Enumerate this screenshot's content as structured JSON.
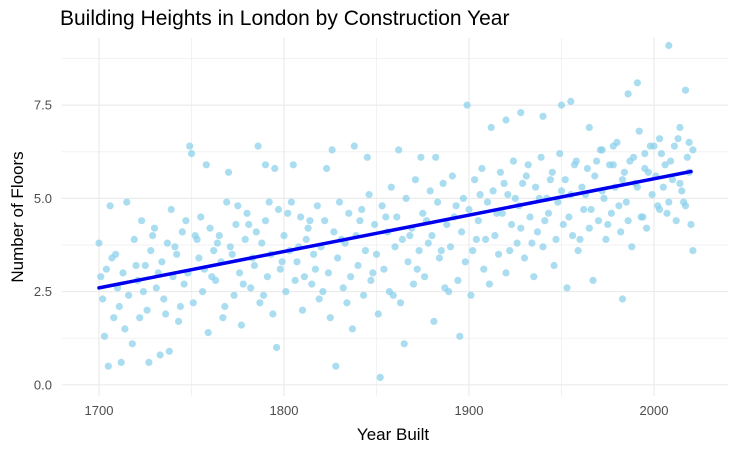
{
  "chart_data": {
    "type": "scatter",
    "title": "Building Heights in London by Construction Year",
    "xlabel": "Year Built",
    "ylabel": "Number of Floors",
    "xlim": [
      1680,
      2040
    ],
    "ylim": [
      -0.3,
      9.3
    ],
    "xticks": [
      1700,
      1800,
      1900,
      2000
    ],
    "xtick_labels": [
      "1700",
      "1800",
      "1900",
      "2000"
    ],
    "yticks": [
      0,
      2.5,
      5,
      7.5
    ],
    "ytick_labels": [
      "0.0",
      "2.5",
      "5.0",
      "7.5"
    ],
    "grid": true,
    "legend": "none",
    "point_color": "#87CEEB",
    "trend_color": "#0000EE",
    "trend_line": {
      "x": [
        1700,
        2020
      ],
      "y": [
        2.6,
        5.72
      ]
    },
    "points": [
      [
        1703,
        1.3
      ],
      [
        1705,
        0.5
      ],
      [
        1708,
        1.8
      ],
      [
        1710,
        2.6
      ],
      [
        1712,
        0.6
      ],
      [
        1718,
        1.1
      ],
      [
        1722,
        1.8
      ],
      [
        1727,
        0.6
      ],
      [
        1733,
        0.8
      ],
      [
        1738,
        0.9
      ],
      [
        1749,
        6.4
      ],
      [
        1750,
        6.2
      ],
      [
        1752,
        4.0
      ],
      [
        1758,
        5.9
      ],
      [
        1770,
        5.7
      ],
      [
        1786,
        6.4
      ],
      [
        1790,
        5.9
      ],
      [
        1796,
        1.0
      ],
      [
        1795,
        5.8
      ],
      [
        1805,
        5.9
      ],
      [
        1823,
        5.8
      ],
      [
        1826,
        6.3
      ],
      [
        1828,
        0.5
      ],
      [
        1838,
        6.4
      ],
      [
        1845,
        6.1
      ],
      [
        1852,
        0.2
      ],
      [
        1862,
        6.3
      ],
      [
        1865,
        1.1
      ],
      [
        1874,
        6.1
      ],
      [
        1882,
        6.1
      ],
      [
        1895,
        1.3
      ],
      [
        1899,
        7.5
      ],
      [
        1912,
        6.9
      ],
      [
        1920,
        7.1
      ],
      [
        1928,
        7.3
      ],
      [
        1940,
        7.2
      ],
      [
        1950,
        7.5
      ],
      [
        1955,
        7.6
      ],
      [
        1965,
        6.9
      ],
      [
        1972,
        6.3
      ],
      [
        1978,
        6.4
      ],
      [
        1983,
        2.3
      ],
      [
        1986,
        7.8
      ],
      [
        1991,
        8.1
      ],
      [
        1995,
        6.2
      ],
      [
        2003,
        6.6
      ],
      [
        2008,
        9.1
      ],
      [
        2014,
        6.9
      ],
      [
        2017,
        7.9
      ],
      [
        2021,
        3.6
      ],
      [
        1700,
        3.8
      ],
      [
        1702,
        2.3
      ],
      [
        1704,
        3.1
      ],
      [
        1706,
        4.8
      ],
      [
        1709,
        3.5
      ],
      [
        1711,
        2.1
      ],
      [
        1713,
        3.0
      ],
      [
        1715,
        4.9
      ],
      [
        1716,
        2.4
      ],
      [
        1719,
        3.9
      ],
      [
        1721,
        2.8
      ],
      [
        1723,
        4.4
      ],
      [
        1725,
        3.2
      ],
      [
        1726,
        2.0
      ],
      [
        1728,
        3.6
      ],
      [
        1730,
        4.2
      ],
      [
        1731,
        2.6
      ],
      [
        1734,
        3.3
      ],
      [
        1736,
        1.9
      ],
      [
        1737,
        3.8
      ],
      [
        1739,
        4.7
      ],
      [
        1740,
        2.9
      ],
      [
        1742,
        3.5
      ],
      [
        1743,
        1.7
      ],
      [
        1745,
        4.1
      ],
      [
        1746,
        2.7
      ],
      [
        1748,
        3.0
      ],
      [
        1751,
        2.2
      ],
      [
        1753,
        3.9
      ],
      [
        1755,
        4.5
      ],
      [
        1756,
        2.5
      ],
      [
        1757,
        3.1
      ],
      [
        1759,
        1.4
      ],
      [
        1760,
        4.2
      ],
      [
        1762,
        3.6
      ],
      [
        1763,
        2.8
      ],
      [
        1765,
        4.0
      ],
      [
        1766,
        3.3
      ],
      [
        1768,
        2.1
      ],
      [
        1769,
        4.9
      ],
      [
        1771,
        3.7
      ],
      [
        1773,
        2.4
      ],
      [
        1774,
        4.3
      ],
      [
        1776,
        3.0
      ],
      [
        1777,
        1.6
      ],
      [
        1779,
        3.9
      ],
      [
        1780,
        4.6
      ],
      [
        1782,
        2.6
      ],
      [
        1783,
        3.4
      ],
      [
        1785,
        4.1
      ],
      [
        1787,
        2.2
      ],
      [
        1788,
        3.8
      ],
      [
        1790,
        4.4
      ],
      [
        1791,
        2.9
      ],
      [
        1793,
        3.5
      ],
      [
        1794,
        1.9
      ],
      [
        1797,
        4.7
      ],
      [
        1798,
        3.1
      ],
      [
        1800,
        4.0
      ],
      [
        1801,
        2.5
      ],
      [
        1803,
        3.6
      ],
      [
        1804,
        4.9
      ],
      [
        1806,
        2.8
      ],
      [
        1807,
        3.3
      ],
      [
        1809,
        4.5
      ],
      [
        1810,
        2.0
      ],
      [
        1812,
        3.9
      ],
      [
        1813,
        4.2
      ],
      [
        1815,
        2.7
      ],
      [
        1816,
        3.5
      ],
      [
        1818,
        4.8
      ],
      [
        1819,
        2.3
      ],
      [
        1820,
        3.7
      ],
      [
        1822,
        4.4
      ],
      [
        1824,
        3.0
      ],
      [
        1825,
        1.8
      ],
      [
        1827,
        4.1
      ],
      [
        1829,
        3.4
      ],
      [
        1830,
        4.9
      ],
      [
        1832,
        2.6
      ],
      [
        1833,
        3.8
      ],
      [
        1835,
        4.6
      ],
      [
        1836,
        2.9
      ],
      [
        1837,
        1.5
      ],
      [
        1839,
        4.0
      ],
      [
        1840,
        3.2
      ],
      [
        1842,
        4.7
      ],
      [
        1843,
        2.4
      ],
      [
        1844,
        3.6
      ],
      [
        1846,
        5.1
      ],
      [
        1847,
        2.8
      ],
      [
        1849,
        4.3
      ],
      [
        1850,
        3.5
      ],
      [
        1851,
        1.9
      ],
      [
        1853,
        4.8
      ],
      [
        1854,
        3.1
      ],
      [
        1856,
        4.1
      ],
      [
        1857,
        2.5
      ],
      [
        1858,
        5.3
      ],
      [
        1860,
        3.7
      ],
      [
        1861,
        4.5
      ],
      [
        1863,
        2.2
      ],
      [
        1864,
        3.9
      ],
      [
        1866,
        5.0
      ],
      [
        1867,
        3.3
      ],
      [
        1869,
        4.2
      ],
      [
        1870,
        2.7
      ],
      [
        1871,
        5.5
      ],
      [
        1873,
        3.6
      ],
      [
        1875,
        4.6
      ],
      [
        1876,
        2.9
      ],
      [
        1878,
        3.8
      ],
      [
        1879,
        5.2
      ],
      [
        1880,
        4.0
      ],
      [
        1881,
        1.7
      ],
      [
        1883,
        4.9
      ],
      [
        1884,
        3.4
      ],
      [
        1886,
        5.4
      ],
      [
        1887,
        2.6
      ],
      [
        1888,
        4.3
      ],
      [
        1890,
        3.7
      ],
      [
        1891,
        5.6
      ],
      [
        1892,
        4.5
      ],
      [
        1894,
        2.8
      ],
      [
        1896,
        4.1
      ],
      [
        1897,
        5.0
      ],
      [
        1898,
        3.3
      ],
      [
        1900,
        4.7
      ],
      [
        1901,
        2.4
      ],
      [
        1903,
        5.5
      ],
      [
        1904,
        3.9
      ],
      [
        1905,
        4.4
      ],
      [
        1907,
        5.8
      ],
      [
        1908,
        3.1
      ],
      [
        1910,
        4.9
      ],
      [
        1911,
        2.7
      ],
      [
        1913,
        5.2
      ],
      [
        1914,
        4.0
      ],
      [
        1916,
        3.5
      ],
      [
        1917,
        5.7
      ],
      [
        1918,
        4.6
      ],
      [
        1920,
        3.0
      ],
      [
        1921,
        5.1
      ],
      [
        1923,
        4.3
      ],
      [
        1924,
        6.0
      ],
      [
        1926,
        3.8
      ],
      [
        1927,
        4.8
      ],
      [
        1929,
        5.4
      ],
      [
        1930,
        3.4
      ],
      [
        1932,
        5.9
      ],
      [
        1933,
        4.5
      ],
      [
        1935,
        2.9
      ],
      [
        1936,
        5.3
      ],
      [
        1937,
        4.1
      ],
      [
        1939,
        6.1
      ],
      [
        1940,
        3.7
      ],
      [
        1942,
        5.0
      ],
      [
        1943,
        4.6
      ],
      [
        1945,
        5.7
      ],
      [
        1946,
        3.2
      ],
      [
        1948,
        4.9
      ],
      [
        1949,
        6.2
      ],
      [
        1951,
        4.3
      ],
      [
        1952,
        5.5
      ],
      [
        1953,
        2.6
      ],
      [
        1955,
        5.1
      ],
      [
        1956,
        4.0
      ],
      [
        1958,
        6.0
      ],
      [
        1959,
        3.6
      ],
      [
        1961,
        5.3
      ],
      [
        1962,
        4.7
      ],
      [
        1964,
        5.8
      ],
      [
        1965,
        4.2
      ],
      [
        1967,
        2.8
      ],
      [
        1968,
        5.6
      ],
      [
        1970,
        4.4
      ],
      [
        1971,
        6.3
      ],
      [
        1973,
        5.0
      ],
      [
        1974,
        3.9
      ],
      [
        1976,
        5.9
      ],
      [
        1977,
        4.6
      ],
      [
        1979,
        5.3
      ],
      [
        1980,
        6.5
      ],
      [
        1982,
        4.1
      ],
      [
        1984,
        5.7
      ],
      [
        1985,
        4.9
      ],
      [
        1987,
        6.0
      ],
      [
        1988,
        3.7
      ],
      [
        1990,
        5.4
      ],
      [
        1992,
        6.8
      ],
      [
        1993,
        4.5
      ],
      [
        1995,
        5.8
      ],
      [
        1996,
        4.2
      ],
      [
        1998,
        6.4
      ],
      [
        1999,
        5.1
      ],
      [
        2001,
        5.6
      ],
      [
        2002,
        4.8
      ],
      [
        2004,
        6.2
      ],
      [
        2005,
        5.3
      ],
      [
        2007,
        4.6
      ],
      [
        2009,
        6.0
      ],
      [
        2010,
        5.5
      ],
      [
        2012,
        4.4
      ],
      [
        2013,
        6.6
      ],
      [
        2015,
        5.2
      ],
      [
        2016,
        4.9
      ],
      [
        2018,
        6.1
      ],
      [
        2019,
        5.7
      ],
      [
        2020,
        4.3
      ],
      [
        2021,
        6.3
      ],
      [
        1701,
        2.9
      ],
      [
        1707,
        3.4
      ],
      [
        1714,
        1.5
      ],
      [
        1720,
        3.2
      ],
      [
        1724,
        2.5
      ],
      [
        1729,
        4.0
      ],
      [
        1732,
        3.0
      ],
      [
        1735,
        2.3
      ],
      [
        1741,
        3.7
      ],
      [
        1744,
        2.1
      ],
      [
        1747,
        4.4
      ],
      [
        1754,
        3.4
      ],
      [
        1761,
        2.9
      ],
      [
        1764,
        3.8
      ],
      [
        1767,
        1.8
      ],
      [
        1772,
        3.5
      ],
      [
        1775,
        4.8
      ],
      [
        1778,
        2.7
      ],
      [
        1781,
        4.3
      ],
      [
        1784,
        3.2
      ],
      [
        1789,
        2.4
      ],
      [
        1792,
        4.9
      ],
      [
        1799,
        3.3
      ],
      [
        1802,
        4.6
      ],
      [
        1808,
        3.7
      ],
      [
        1811,
        2.9
      ],
      [
        1814,
        4.4
      ],
      [
        1817,
        3.1
      ],
      [
        1821,
        2.5
      ],
      [
        1831,
        3.9
      ],
      [
        1834,
        2.2
      ],
      [
        1841,
        4.4
      ],
      [
        1848,
        3.0
      ],
      [
        1855,
        4.5
      ],
      [
        1859,
        2.4
      ],
      [
        1868,
        4.0
      ],
      [
        1872,
        3.1
      ],
      [
        1877,
        4.4
      ],
      [
        1885,
        3.6
      ],
      [
        1889,
        2.5
      ],
      [
        1893,
        4.8
      ],
      [
        1902,
        3.6
      ],
      [
        1906,
        5.1
      ],
      [
        1909,
        3.9
      ],
      [
        1915,
        4.6
      ],
      [
        1919,
        5.4
      ],
      [
        1922,
        3.6
      ],
      [
        1925,
        5.0
      ],
      [
        1928,
        4.2
      ],
      [
        1931,
        5.6
      ],
      [
        1934,
        3.8
      ],
      [
        1938,
        5.0
      ],
      [
        1941,
        4.4
      ],
      [
        1944,
        5.5
      ],
      [
        1947,
        3.9
      ],
      [
        1950,
        5.2
      ],
      [
        1954,
        4.5
      ],
      [
        1957,
        5.9
      ],
      [
        1960,
        3.9
      ],
      [
        1963,
        5.1
      ],
      [
        1966,
        4.7
      ],
      [
        1969,
        6.0
      ],
      [
        1972,
        5.2
      ],
      [
        1975,
        4.3
      ],
      [
        1978,
        5.9
      ],
      [
        1981,
        4.8
      ],
      [
        1983,
        5.5
      ],
      [
        1986,
        4.4
      ],
      [
        1989,
        6.1
      ],
      [
        1991,
        5.3
      ],
      [
        1994,
        4.5
      ],
      [
        1997,
        5.7
      ],
      [
        2000,
        6.4
      ],
      [
        2003,
        4.7
      ],
      [
        2006,
        5.9
      ],
      [
        2011,
        6.4
      ],
      [
        2014,
        5.4
      ],
      [
        2017,
        4.8
      ],
      [
        2019,
        6.5
      ],
      [
        2008,
        4.9
      ]
    ]
  }
}
